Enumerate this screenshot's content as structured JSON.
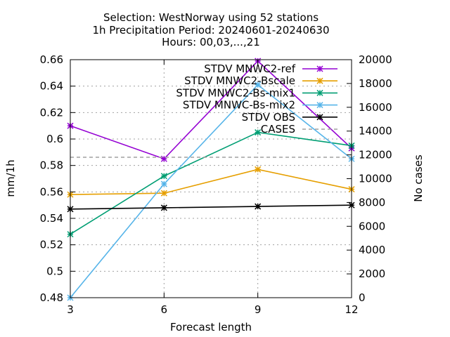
{
  "chart_data": {
    "type": "line",
    "title": [
      "Selection: WestNorway using    52 stations",
      "1h Precipitation   Period: 20240601-20240630",
      "Hours: 00,03,...,21"
    ],
    "xlabel": "Forecast length",
    "ylabel": "mm/1h",
    "y2label": "No cases",
    "x": [
      3,
      6,
      9,
      12
    ],
    "x_ticks": [
      "3",
      "6",
      "9",
      "12"
    ],
    "ylim": [
      0.48,
      0.66
    ],
    "y_ticks": [
      "0.48",
      "0.5",
      "0.52",
      "0.54",
      "0.56",
      "0.58",
      "0.6",
      "0.62",
      "0.64",
      "0.66"
    ],
    "y2lim": [
      0,
      20000
    ],
    "y2_ticks": [
      "0",
      "2000",
      "4000",
      "6000",
      "8000",
      "10000",
      "12000",
      "14000",
      "16000",
      "18000",
      "20000"
    ],
    "grid": true,
    "legend_position": "top-right",
    "series": [
      {
        "name": "STDV MNWC2-ref",
        "color": "#9400d3",
        "axis": "y",
        "marker": "star",
        "values": [
          0.61,
          0.585,
          0.659,
          0.593
        ]
      },
      {
        "name": "STDV MNWC2-Bscale",
        "color": "#e69f00",
        "axis": "y",
        "marker": "star",
        "values": [
          0.558,
          0.559,
          0.577,
          0.562
        ]
      },
      {
        "name": "STDV MNWC2-Bs-mix1",
        "color": "#009e73",
        "axis": "y",
        "marker": "star",
        "values": [
          0.528,
          0.572,
          0.605,
          0.595
        ]
      },
      {
        "name": "STDV MNWC-Bs-mix2",
        "color": "#56b4e9",
        "axis": "y",
        "marker": "star",
        "values": [
          0.48,
          0.566,
          0.641,
          0.585
        ]
      },
      {
        "name": "STDV OBS",
        "color": "#000000",
        "axis": "y",
        "marker": "star",
        "values": [
          0.547,
          0.548,
          0.549,
          0.55
        ]
      },
      {
        "name": "CASES",
        "color": "#a0a0a0",
        "axis": "y2",
        "marker": "none",
        "dashed": true,
        "values": [
          11800,
          11800,
          11800,
          11800
        ]
      }
    ]
  }
}
